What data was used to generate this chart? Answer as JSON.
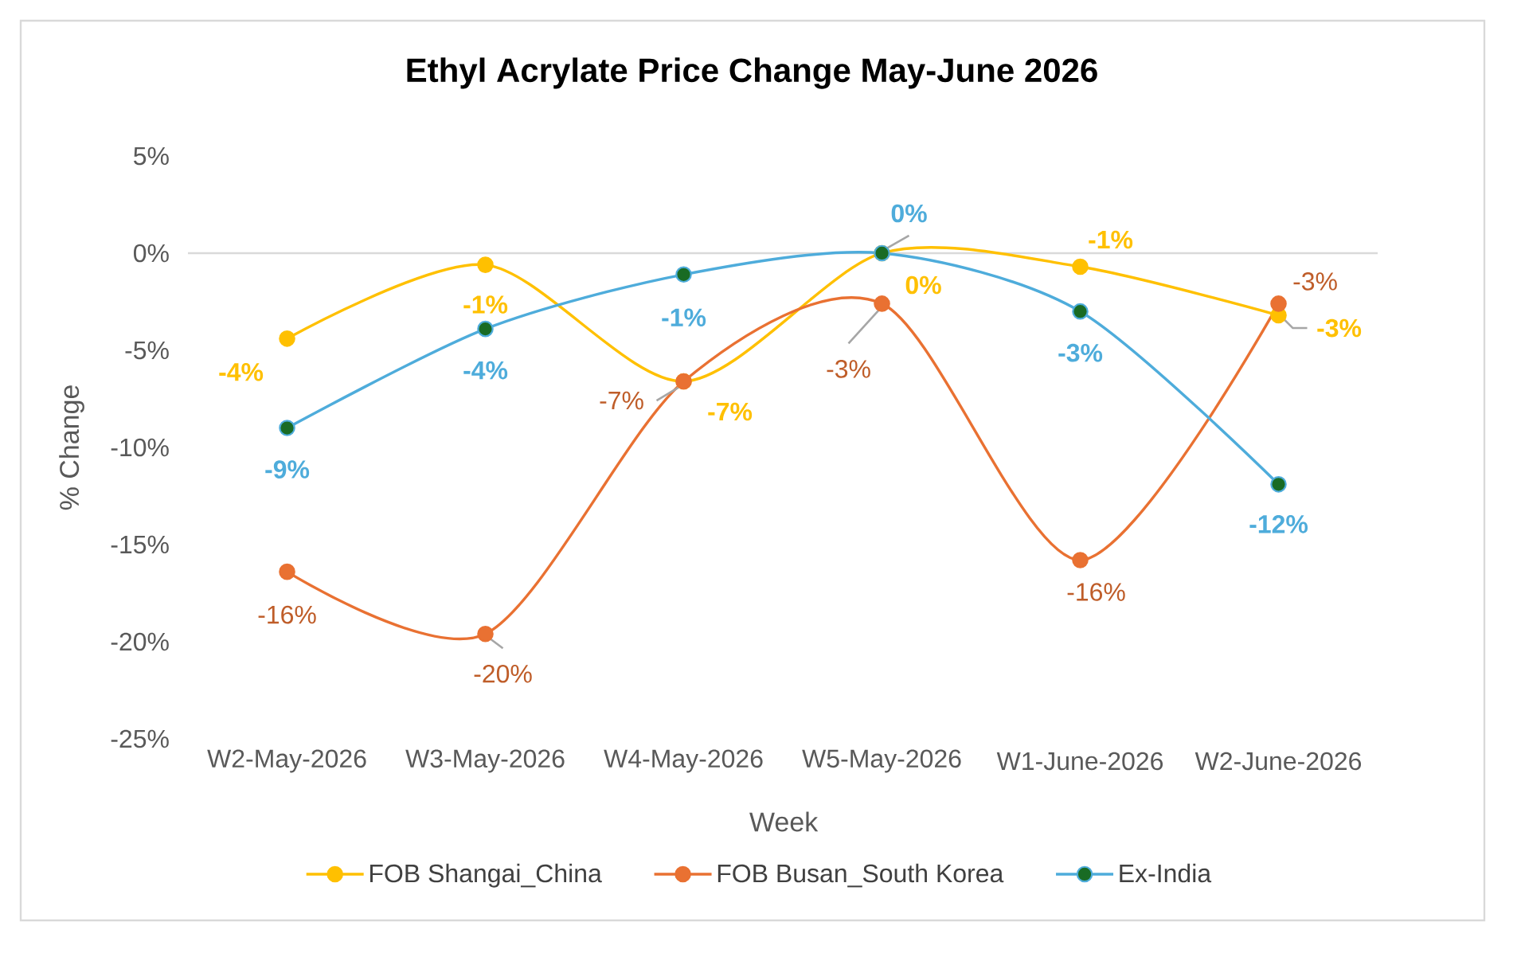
{
  "chart_data": {
    "type": "line",
    "title": "Ethyl Acrylate Price Change May-June 2026",
    "xlabel": "Week",
    "ylabel": "% Change",
    "categories": [
      "W2-May-2026",
      "W3-May-2026",
      "W4-May-2026",
      "W5-May-2026",
      "W1-June-2026",
      "W2-June-2026"
    ],
    "series": [
      {
        "name": "FOB Shangai_China",
        "color": "#ffc000",
        "values": [
          -4.4,
          -0.6,
          -6.6,
          0,
          -0.7,
          -3.2
        ],
        "value_labels": [
          "-4%",
          "-1%",
          "-7%",
          "0%",
          "-1%",
          "-3%"
        ]
      },
      {
        "name": "FOB Busan_South Korea",
        "color": "#e97132",
        "values": [
          -16.4,
          -19.6,
          -6.6,
          -2.6,
          -15.8,
          -2.6
        ],
        "value_labels": [
          "-16%",
          "-20%",
          "-7%",
          "-3%",
          "-16%",
          "-3%"
        ]
      },
      {
        "name": "Ex-India",
        "color": "#4eacdb",
        "colors": [
          "#196b24",
          "#196b24",
          "#196b24",
          "#196b24",
          "#196b24",
          "#196b24"
        ],
        "values": [
          -9.0,
          -3.9,
          -1.1,
          0,
          -3.0,
          -11.9
        ],
        "value_labels": [
          "-9%",
          "-4%",
          "-1%",
          "0%",
          "-3%",
          "-12%"
        ]
      }
    ],
    "ylim": [
      -25,
      5
    ],
    "yticks": [
      {
        "value": -25,
        "label": "-25%"
      },
      {
        "value": -20,
        "label": "-20%"
      },
      {
        "value": -15,
        "label": "-15%"
      },
      {
        "value": -10,
        "label": "-10%"
      },
      {
        "value": -5,
        "label": "-5%"
      },
      {
        "value": 0,
        "label": "0%"
      },
      {
        "value": 5,
        "label": "5%"
      }
    ],
    "ref_lines": [
      {
        "axis": "y",
        "value": 0,
        "color": "#d9d9d9"
      }
    ],
    "legend": "bottom",
    "marker": "circle",
    "line_style": "solid"
  }
}
